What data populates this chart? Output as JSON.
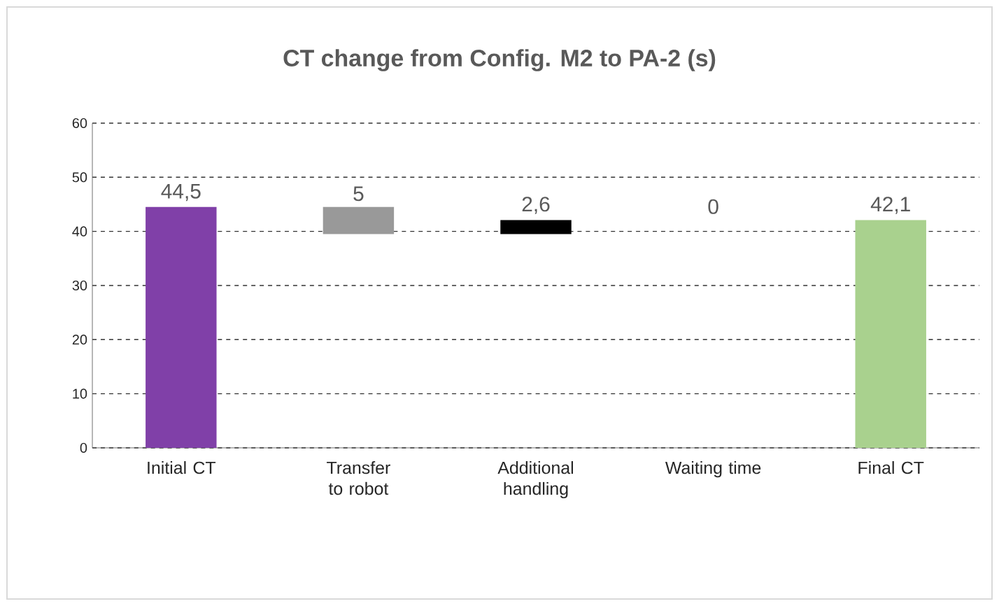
{
  "chart_data": {
    "type": "bar",
    "title": "CT change from Config. M2 to PA-2 (s)",
    "categories": [
      "Initial CT",
      "Transfer to robot",
      "Additional handling",
      "Waiting time",
      "Final CT"
    ],
    "values": [
      44.5,
      -5,
      2.6,
      0,
      42.1
    ],
    "base": [
      0,
      44.5,
      39.5,
      null,
      0
    ],
    "colors": [
      "#8040a8",
      "#999999",
      "#000000",
      null,
      "#a9d18e"
    ],
    "value_labels": [
      "44,5",
      "5",
      "2,6",
      null,
      "42,1"
    ],
    "annotations": [
      "0"
    ],
    "ylim": [
      0,
      60
    ],
    "yticks": [
      0,
      10,
      20,
      30,
      40,
      50,
      60
    ],
    "grid": "y"
  }
}
